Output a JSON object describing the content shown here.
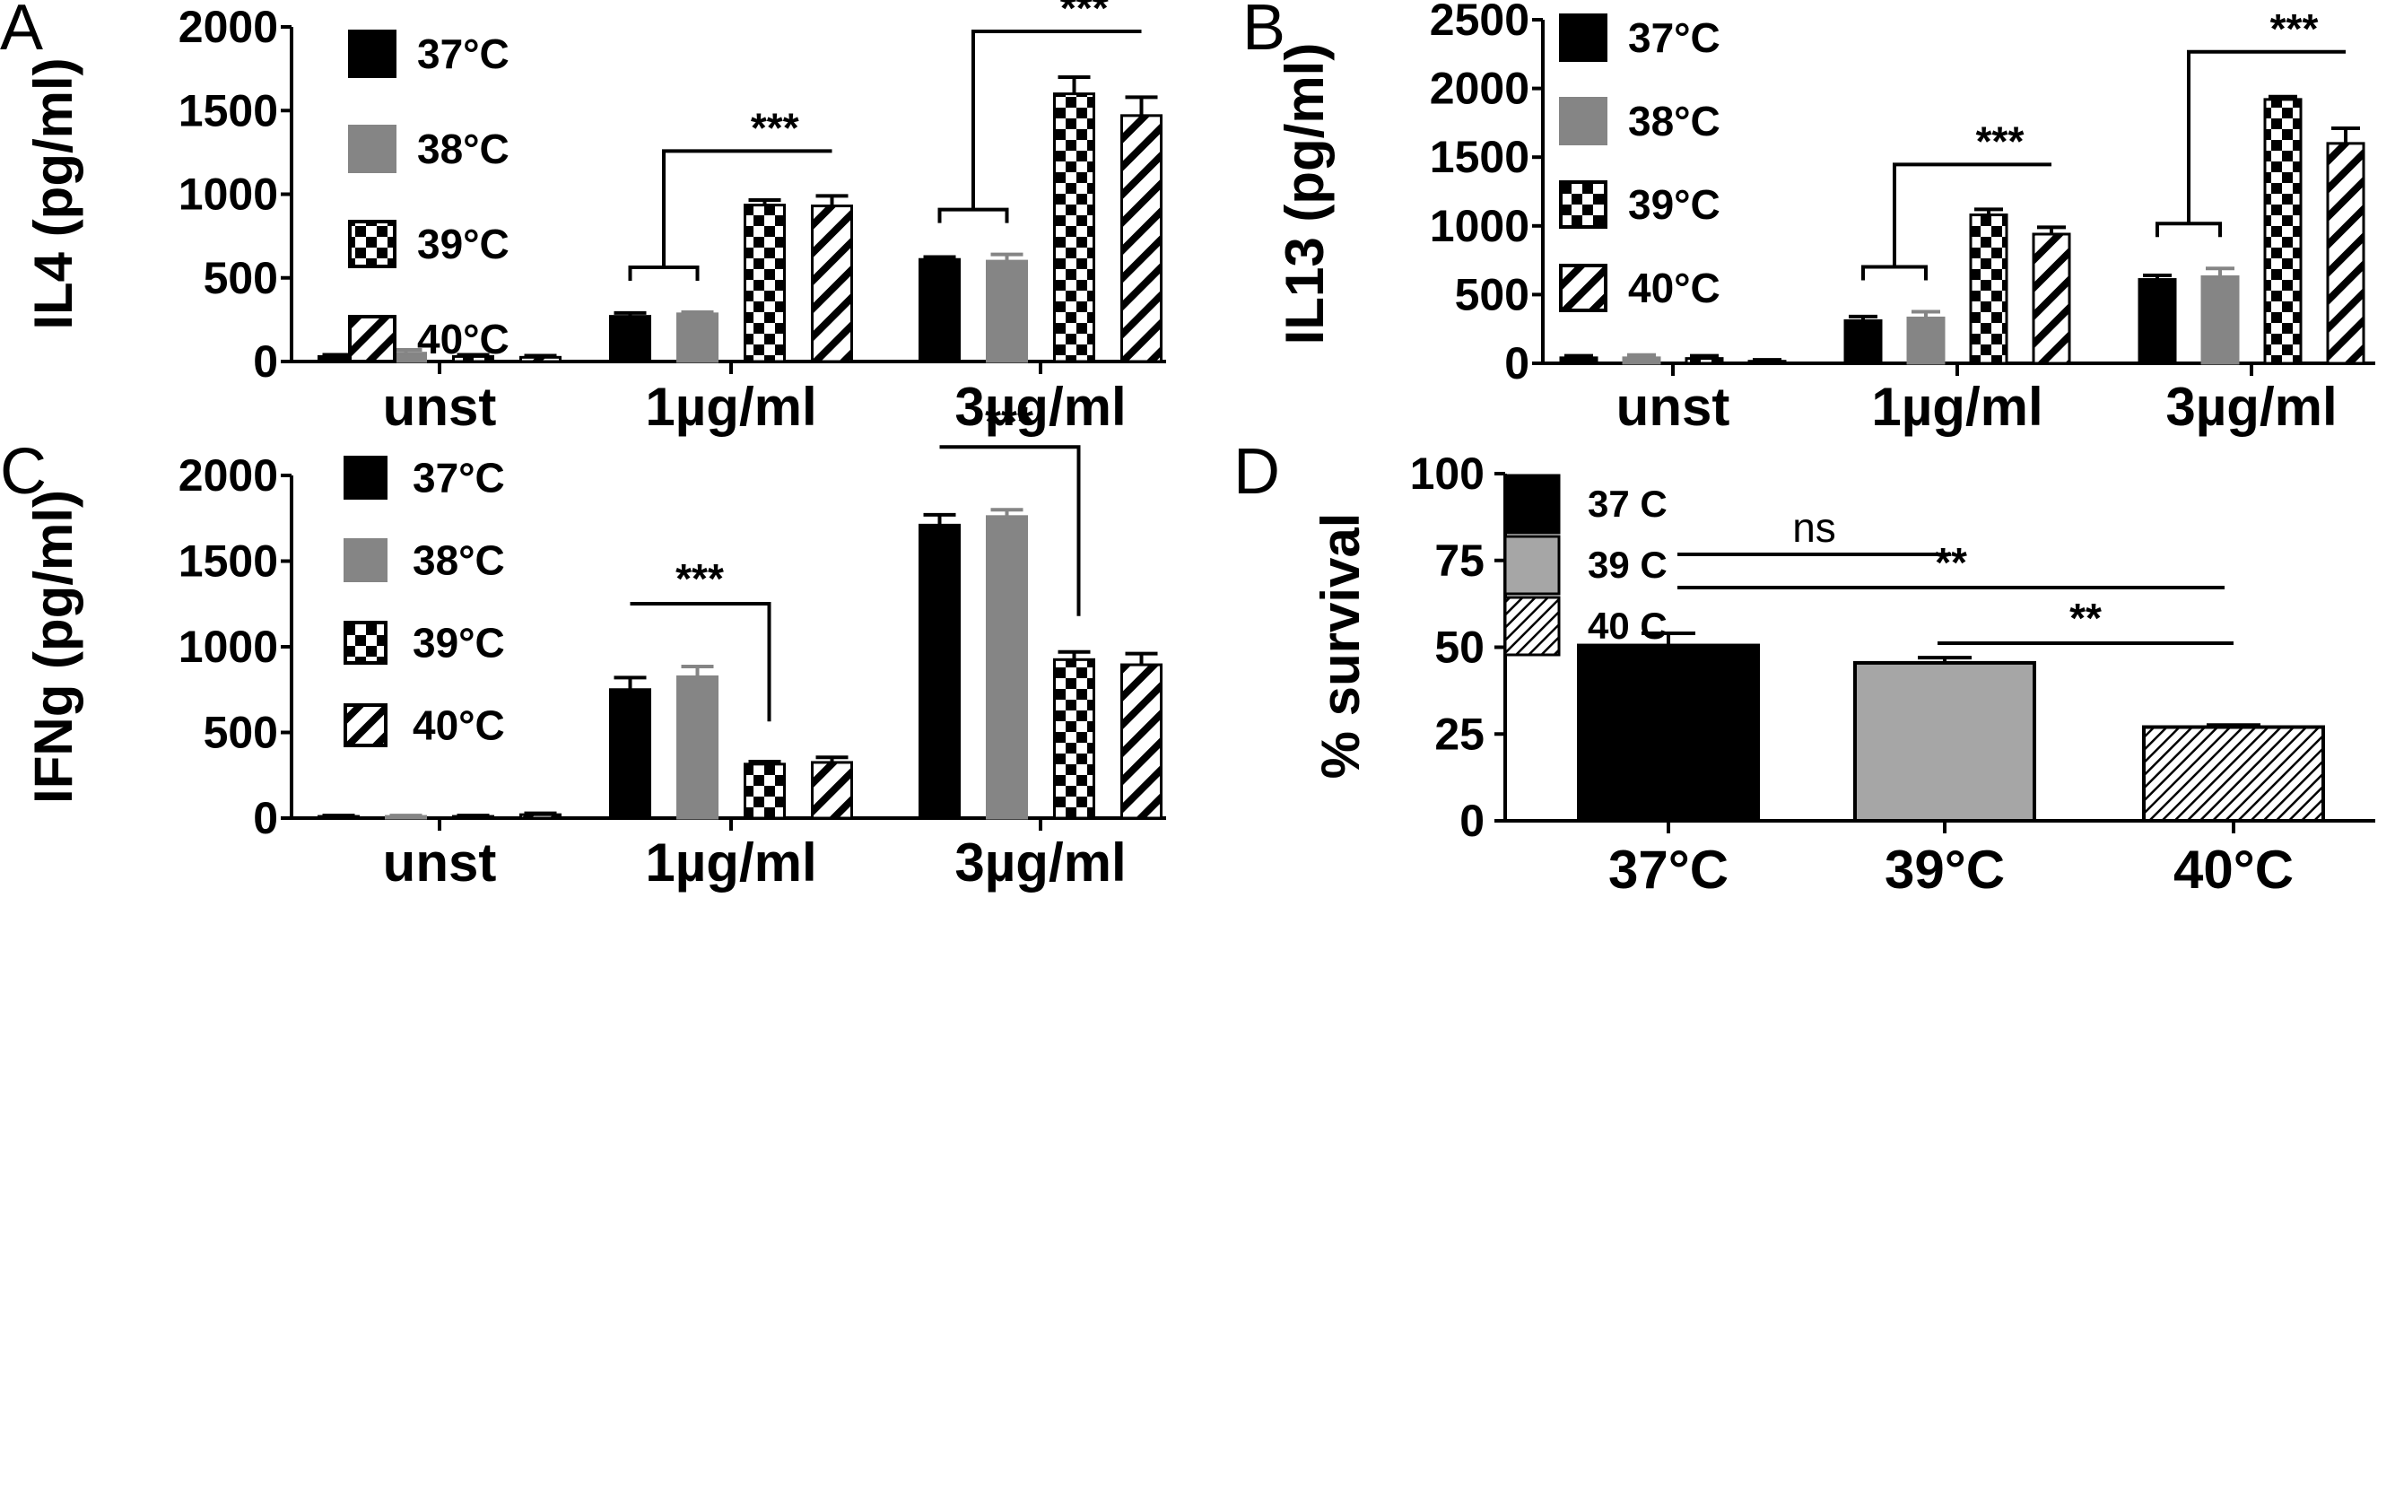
{
  "figure": {
    "panels": [
      "A",
      "B",
      "C",
      "D"
    ]
  },
  "patterns": {
    "37": "solid-black",
    "38": "solid-gray",
    "39": "checkerboard",
    "40": "diagonal-hatch"
  },
  "colors": {
    "black": "#000000",
    "gray": "#858585",
    "gray_light": "#a6a6a6",
    "white": "#ffffff"
  },
  "chart_data": [
    {
      "panel": "A",
      "type": "bar",
      "ylabel": "IL4 (pg/ml)",
      "ylim": [
        0,
        2000
      ],
      "yticks": [
        0,
        500,
        1000,
        1500,
        2000
      ],
      "categories": [
        "unst",
        "1µg/ml",
        "3µg/ml"
      ],
      "series": [
        {
          "name": "37°C",
          "pattern": "solid-black",
          "values": [
            30,
            270,
            610
          ],
          "errors": [
            10,
            20,
            15
          ]
        },
        {
          "name": "38°C",
          "pattern": "solid-gray",
          "values": [
            50,
            285,
            600
          ],
          "errors": [
            20,
            10,
            40
          ]
        },
        {
          "name": "39°C",
          "pattern": "checkerboard",
          "values": [
            30,
            935,
            1600
          ],
          "errors": [
            10,
            30,
            100
          ]
        },
        {
          "name": "40°C",
          "pattern": "diagonal-hatch",
          "values": [
            25,
            930,
            1470
          ],
          "errors": [
            10,
            60,
            110
          ]
        }
      ],
      "legend": [
        "37°C",
        "38°C",
        "39°C",
        "40°C"
      ],
      "significance": [
        {
          "label": "***",
          "category": 1
        },
        {
          "label": "***",
          "category": 2
        }
      ]
    },
    {
      "panel": "B",
      "type": "bar",
      "ylabel": "IL13 (pg/ml)",
      "ylim": [
        0,
        2500
      ],
      "yticks": [
        0,
        500,
        1000,
        1500,
        2000,
        2500
      ],
      "categories": [
        "unst",
        "1µg/ml",
        "3µg/ml"
      ],
      "series": [
        {
          "name": "37°C",
          "pattern": "solid-black",
          "values": [
            40,
            310,
            610
          ],
          "errors": [
            15,
            30,
            30
          ]
        },
        {
          "name": "38°C",
          "pattern": "solid-gray",
          "values": [
            40,
            330,
            630
          ],
          "errors": [
            20,
            45,
            60
          ]
        },
        {
          "name": "39°C",
          "pattern": "checkerboard",
          "values": [
            35,
            1080,
            1920
          ],
          "errors": [
            20,
            40,
            20
          ]
        },
        {
          "name": "40°C",
          "pattern": "diagonal-hatch",
          "values": [
            15,
            940,
            1600
          ],
          "errors": [
            10,
            50,
            110
          ]
        }
      ],
      "legend": [
        "37°C",
        "38°C",
        "39°C",
        "40°C"
      ],
      "significance": [
        {
          "label": "***",
          "category": 1
        },
        {
          "label": "***",
          "category": 2
        }
      ]
    },
    {
      "panel": "C",
      "type": "bar",
      "ylabel": "IFNg (pg/ml)",
      "ylim": [
        0,
        2000
      ],
      "yticks": [
        0,
        500,
        1000,
        1500,
        2000
      ],
      "categories": [
        "unst",
        "1µg/ml",
        "3µg/ml"
      ],
      "series": [
        {
          "name": "37°C",
          "pattern": "solid-black",
          "values": [
            10,
            750,
            1710
          ],
          "errors": [
            5,
            70,
            60
          ]
        },
        {
          "name": "38°C",
          "pattern": "solid-gray",
          "values": [
            10,
            825,
            1760
          ],
          "errors": [
            5,
            60,
            40
          ]
        },
        {
          "name": "39°C",
          "pattern": "checkerboard",
          "values": [
            10,
            315,
            925
          ],
          "errors": [
            5,
            15,
            45
          ]
        },
        {
          "name": "40°C",
          "pattern": "diagonal-hatch",
          "values": [
            20,
            325,
            895
          ],
          "errors": [
            8,
            30,
            65
          ]
        }
      ],
      "legend": [
        "37°C",
        "38°C",
        "39°C",
        "40°C"
      ],
      "significance": [
        {
          "label": "***",
          "category": 1
        },
        {
          "label": "***",
          "category": 2
        }
      ]
    },
    {
      "panel": "D",
      "type": "bar",
      "ylabel": "% survival",
      "ylim": [
        0,
        100
      ],
      "yticks": [
        0,
        25,
        50,
        75,
        100
      ],
      "categories": [
        "37°C",
        "39°C",
        "40°C"
      ],
      "values": [
        50.5,
        45.5,
        27
      ],
      "errors": [
        3.5,
        1.5,
        0.6
      ],
      "patterns": [
        "solid-black",
        "solid-gray-light",
        "diagonal-hatch-fine"
      ],
      "legend": [
        "37 C",
        "39 C",
        "40 C"
      ],
      "significance": [
        {
          "label": "ns",
          "from": 0,
          "to": 1
        },
        {
          "label": "**",
          "from": 0,
          "to": 2
        },
        {
          "label": "**",
          "from": 1,
          "to": 2
        }
      ]
    }
  ]
}
